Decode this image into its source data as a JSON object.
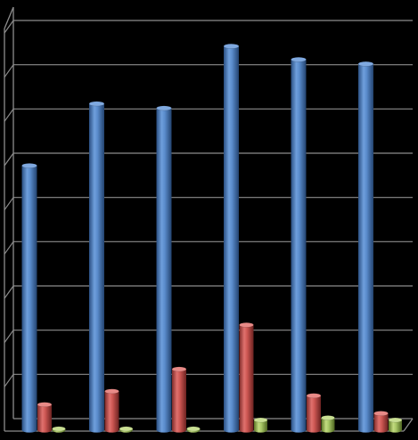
{
  "chart_data": {
    "type": "bar",
    "style": "3d-cylinder",
    "grid": true,
    "legend": "none",
    "ylim": [
      0,
      9
    ],
    "categories": [
      "",
      "",
      "",
      "",
      "",
      ""
    ],
    "series": [
      {
        "values": [
          6.0,
          7.4,
          7.3,
          8.7,
          8.4,
          8.3
        ],
        "color": "#4f81bd"
      },
      {
        "values": [
          0.6,
          0.9,
          1.4,
          2.4,
          0.8,
          0.4
        ],
        "color": "#c0504d"
      },
      {
        "values": [
          0.0,
          0.0,
          0.0,
          0.25,
          0.3,
          0.25
        ],
        "color": "#9bbb59"
      }
    ]
  }
}
